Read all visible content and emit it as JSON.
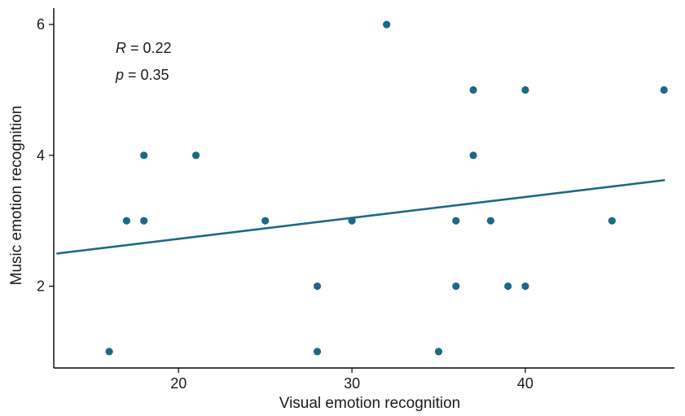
{
  "chart_data": {
    "type": "scatter",
    "title": "",
    "xlabel": "Visual emotion recognition",
    "ylabel": "Music emotion recognition",
    "xlim": [
      12.8,
      48.6
    ],
    "ylim": [
      0.75,
      6.25
    ],
    "x_ticks": [
      20,
      30,
      40
    ],
    "y_ticks": [
      2,
      4,
      6
    ],
    "x_tick_labels": [
      "20",
      "30",
      "40"
    ],
    "y_tick_labels": [
      "2",
      "4",
      "6"
    ],
    "grid": false,
    "points": [
      {
        "x": 16,
        "y": 1
      },
      {
        "x": 17,
        "y": 3
      },
      {
        "x": 18,
        "y": 3
      },
      {
        "x": 18,
        "y": 4
      },
      {
        "x": 21,
        "y": 4
      },
      {
        "x": 25,
        "y": 3
      },
      {
        "x": 28,
        "y": 2
      },
      {
        "x": 28,
        "y": 1
      },
      {
        "x": 30,
        "y": 3
      },
      {
        "x": 32,
        "y": 6
      },
      {
        "x": 35,
        "y": 1
      },
      {
        "x": 36,
        "y": 3
      },
      {
        "x": 36,
        "y": 2
      },
      {
        "x": 37,
        "y": 5
      },
      {
        "x": 37,
        "y": 4
      },
      {
        "x": 38,
        "y": 3
      },
      {
        "x": 39,
        "y": 2
      },
      {
        "x": 40,
        "y": 5
      },
      {
        "x": 40,
        "y": 2
      },
      {
        "x": 45,
        "y": 3
      },
      {
        "x": 48,
        "y": 5
      }
    ],
    "regression_line": {
      "x": [
        13,
        48
      ],
      "y": [
        2.5,
        3.62
      ]
    },
    "annotations": {
      "r_symbol": "R",
      "r_value": " = 0.22",
      "p_symbol": "p",
      "p_value": " = 0.35"
    },
    "colors": {
      "points": "#1b6a85",
      "line": "#1b6a85",
      "axis": "#000000"
    }
  }
}
